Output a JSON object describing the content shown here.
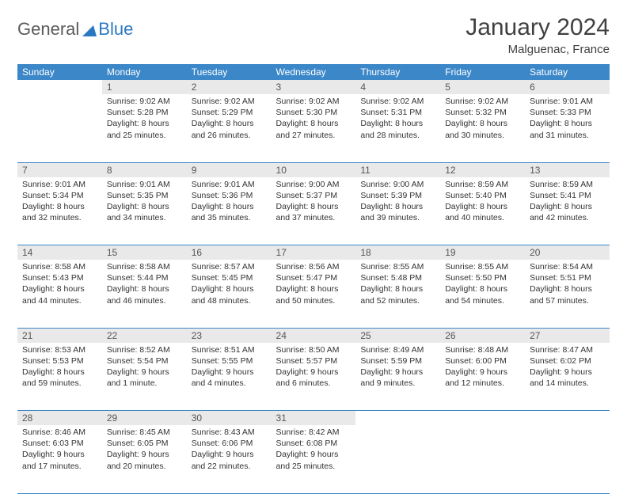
{
  "logo": {
    "part1": "General",
    "part2": "Blue"
  },
  "title": "January 2024",
  "location": "Malguenac, France",
  "colors": {
    "header_bg": "#3b87c8",
    "header_text": "#ffffff",
    "daynum_bg": "#e9e9e9",
    "border": "#3b87c8",
    "page_bg": "#ffffff",
    "text": "#333333",
    "logo_gray": "#5a5a5a",
    "logo_blue": "#2b78c2"
  },
  "weekdays": [
    "Sunday",
    "Monday",
    "Tuesday",
    "Wednesday",
    "Thursday",
    "Friday",
    "Saturday"
  ],
  "weeks": [
    [
      null,
      {
        "n": "1",
        "sunrise": "9:02 AM",
        "sunset": "5:28 PM",
        "daylight": "8 hours and 25 minutes."
      },
      {
        "n": "2",
        "sunrise": "9:02 AM",
        "sunset": "5:29 PM",
        "daylight": "8 hours and 26 minutes."
      },
      {
        "n": "3",
        "sunrise": "9:02 AM",
        "sunset": "5:30 PM",
        "daylight": "8 hours and 27 minutes."
      },
      {
        "n": "4",
        "sunrise": "9:02 AM",
        "sunset": "5:31 PM",
        "daylight": "8 hours and 28 minutes."
      },
      {
        "n": "5",
        "sunrise": "9:02 AM",
        "sunset": "5:32 PM",
        "daylight": "8 hours and 30 minutes."
      },
      {
        "n": "6",
        "sunrise": "9:01 AM",
        "sunset": "5:33 PM",
        "daylight": "8 hours and 31 minutes."
      }
    ],
    [
      {
        "n": "7",
        "sunrise": "9:01 AM",
        "sunset": "5:34 PM",
        "daylight": "8 hours and 32 minutes."
      },
      {
        "n": "8",
        "sunrise": "9:01 AM",
        "sunset": "5:35 PM",
        "daylight": "8 hours and 34 minutes."
      },
      {
        "n": "9",
        "sunrise": "9:01 AM",
        "sunset": "5:36 PM",
        "daylight": "8 hours and 35 minutes."
      },
      {
        "n": "10",
        "sunrise": "9:00 AM",
        "sunset": "5:37 PM",
        "daylight": "8 hours and 37 minutes."
      },
      {
        "n": "11",
        "sunrise": "9:00 AM",
        "sunset": "5:39 PM",
        "daylight": "8 hours and 39 minutes."
      },
      {
        "n": "12",
        "sunrise": "8:59 AM",
        "sunset": "5:40 PM",
        "daylight": "8 hours and 40 minutes."
      },
      {
        "n": "13",
        "sunrise": "8:59 AM",
        "sunset": "5:41 PM",
        "daylight": "8 hours and 42 minutes."
      }
    ],
    [
      {
        "n": "14",
        "sunrise": "8:58 AM",
        "sunset": "5:43 PM",
        "daylight": "8 hours and 44 minutes."
      },
      {
        "n": "15",
        "sunrise": "8:58 AM",
        "sunset": "5:44 PM",
        "daylight": "8 hours and 46 minutes."
      },
      {
        "n": "16",
        "sunrise": "8:57 AM",
        "sunset": "5:45 PM",
        "daylight": "8 hours and 48 minutes."
      },
      {
        "n": "17",
        "sunrise": "8:56 AM",
        "sunset": "5:47 PM",
        "daylight": "8 hours and 50 minutes."
      },
      {
        "n": "18",
        "sunrise": "8:55 AM",
        "sunset": "5:48 PM",
        "daylight": "8 hours and 52 minutes."
      },
      {
        "n": "19",
        "sunrise": "8:55 AM",
        "sunset": "5:50 PM",
        "daylight": "8 hours and 54 minutes."
      },
      {
        "n": "20",
        "sunrise": "8:54 AM",
        "sunset": "5:51 PM",
        "daylight": "8 hours and 57 minutes."
      }
    ],
    [
      {
        "n": "21",
        "sunrise": "8:53 AM",
        "sunset": "5:53 PM",
        "daylight": "8 hours and 59 minutes."
      },
      {
        "n": "22",
        "sunrise": "8:52 AM",
        "sunset": "5:54 PM",
        "daylight": "9 hours and 1 minute."
      },
      {
        "n": "23",
        "sunrise": "8:51 AM",
        "sunset": "5:55 PM",
        "daylight": "9 hours and 4 minutes."
      },
      {
        "n": "24",
        "sunrise": "8:50 AM",
        "sunset": "5:57 PM",
        "daylight": "9 hours and 6 minutes."
      },
      {
        "n": "25",
        "sunrise": "8:49 AM",
        "sunset": "5:59 PM",
        "daylight": "9 hours and 9 minutes."
      },
      {
        "n": "26",
        "sunrise": "8:48 AM",
        "sunset": "6:00 PM",
        "daylight": "9 hours and 12 minutes."
      },
      {
        "n": "27",
        "sunrise": "8:47 AM",
        "sunset": "6:02 PM",
        "daylight": "9 hours and 14 minutes."
      }
    ],
    [
      {
        "n": "28",
        "sunrise": "8:46 AM",
        "sunset": "6:03 PM",
        "daylight": "9 hours and 17 minutes."
      },
      {
        "n": "29",
        "sunrise": "8:45 AM",
        "sunset": "6:05 PM",
        "daylight": "9 hours and 20 minutes."
      },
      {
        "n": "30",
        "sunrise": "8:43 AM",
        "sunset": "6:06 PM",
        "daylight": "9 hours and 22 minutes."
      },
      {
        "n": "31",
        "sunrise": "8:42 AM",
        "sunset": "6:08 PM",
        "daylight": "9 hours and 25 minutes."
      },
      null,
      null,
      null
    ]
  ],
  "labels": {
    "sunrise": "Sunrise:",
    "sunset": "Sunset:",
    "daylight": "Daylight:"
  }
}
